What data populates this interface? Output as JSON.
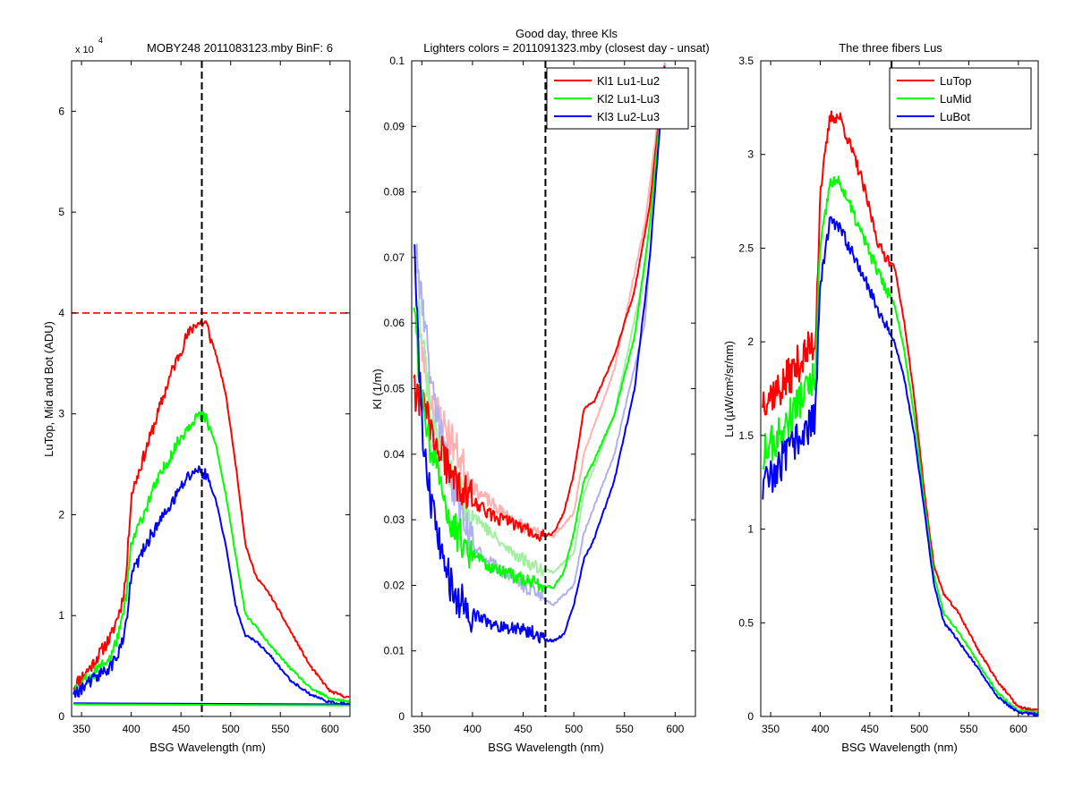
{
  "chart_data": [
    {
      "type": "line",
      "title": "MOBY248  2011083123.mby BinF: 6",
      "multiplier_label": "x 10",
      "multiplier_exponent": "4",
      "xlabel": "BSG Wavelength (nm)",
      "ylabel": "LuTop, Mid and Bot (ADU)",
      "xlim": [
        340,
        620
      ],
      "ylim": [
        0,
        65000
      ],
      "xticks": [
        350,
        400,
        450,
        500,
        550,
        600
      ],
      "yticks": [
        0,
        10000,
        20000,
        30000,
        40000,
        50000,
        60000
      ],
      "ytick_labels": [
        "0",
        "1",
        "2",
        "3",
        "4",
        "5",
        "6"
      ],
      "vline_x": 471,
      "hline_y": 40000,
      "noise_seed": 11,
      "series": [
        {
          "color": "#ff0000",
          "x": [
            342,
            360,
            380,
            390,
            395,
            400,
            420,
            440,
            455,
            465,
            475,
            485,
            495,
            505,
            515,
            525,
            540,
            560,
            580,
            600,
            620
          ],
          "y": [
            3000,
            5000,
            8000,
            11000,
            14000,
            22000,
            28000,
            34000,
            37500,
            39000,
            39000,
            36000,
            32000,
            25000,
            17000,
            14000,
            12000,
            8500,
            5000,
            2500,
            1800
          ]
        },
        {
          "color": "#00ff00",
          "x": [
            342,
            360,
            380,
            390,
            395,
            400,
            420,
            440,
            455,
            465,
            475,
            485,
            495,
            505,
            515,
            525,
            540,
            560,
            580,
            600,
            620
          ],
          "y": [
            2600,
            4000,
            6000,
            9000,
            12000,
            17000,
            22000,
            26000,
            28500,
            29800,
            29500,
            27000,
            22000,
            16000,
            10000,
            9000,
            7000,
            4800,
            2800,
            1800,
            1400
          ]
        },
        {
          "color": "#0000ff",
          "x": [
            342,
            360,
            380,
            390,
            395,
            400,
            420,
            440,
            455,
            465,
            475,
            485,
            495,
            505,
            515,
            525,
            540,
            560,
            580,
            600,
            620
          ],
          "y": [
            2200,
            3500,
            5000,
            7000,
            9000,
            14000,
            18000,
            21000,
            23500,
            24500,
            24000,
            21500,
            17000,
            11000,
            8000,
            7500,
            6000,
            3600,
            2200,
            1400,
            1200
          ]
        },
        {
          "color": "#0000ff",
          "x": [
            342,
            620
          ],
          "y": [
            1300,
            1200
          ],
          "noise": false
        },
        {
          "color": "#00ff00",
          "x": [
            342,
            620
          ],
          "y": [
            1200,
            1100
          ],
          "noise": false
        }
      ]
    },
    {
      "type": "line",
      "title": "Good day, three Kls",
      "subtitle": "Lighters colors = 2011091323.mby (closest day - unsat)",
      "xlabel": "BSG Wavelength (nm)",
      "ylabel": "Kl (1/m)",
      "xlim": [
        340,
        620
      ],
      "ylim": [
        0,
        0.1
      ],
      "xticks": [
        350,
        400,
        450,
        500,
        550,
        600
      ],
      "yticks": [
        0,
        0.01,
        0.02,
        0.03,
        0.04,
        0.05,
        0.06,
        0.07,
        0.08,
        0.09,
        0.1
      ],
      "ytick_labels": [
        "0",
        "0.01",
        "0.02",
        "0.03",
        "0.04",
        "0.05",
        "0.06",
        "0.07",
        "0.08",
        "0.09",
        "0.1"
      ],
      "vline_x": 472,
      "legend": {
        "position": "top-right",
        "entries": [
          {
            "label": "Kl1 Lu1-Lu2",
            "color": "#ff0000"
          },
          {
            "label": "Kl2 Lu1-Lu3",
            "color": "#00ff00"
          },
          {
            "label": "Kl3 Lu2-Lu3",
            "color": "#0000ff"
          }
        ]
      },
      "noise_seed": 23,
      "series": [
        {
          "color": "#ffb0b0",
          "x": [
            345,
            360,
            380,
            400,
            430,
            460,
            480,
            500,
            510,
            540,
            570,
            590
          ],
          "y": [
            0.06,
            0.048,
            0.042,
            0.035,
            0.031,
            0.028,
            0.0275,
            0.031,
            0.04,
            0.053,
            0.075,
            0.1
          ]
        },
        {
          "color": "#a0f0a0",
          "x": [
            345,
            360,
            380,
            400,
            430,
            460,
            480,
            500,
            510,
            540,
            570,
            590
          ],
          "y": [
            0.065,
            0.045,
            0.036,
            0.031,
            0.026,
            0.023,
            0.022,
            0.025,
            0.034,
            0.046,
            0.068,
            0.1
          ]
        },
        {
          "color": "#b0b0f0",
          "x": [
            345,
            360,
            380,
            400,
            430,
            460,
            480,
            500,
            510,
            540,
            570,
            590
          ],
          "y": [
            0.07,
            0.05,
            0.035,
            0.026,
            0.022,
            0.019,
            0.017,
            0.02,
            0.028,
            0.04,
            0.06,
            0.1
          ]
        },
        {
          "color": "#ff0000",
          "x": [
            342,
            350,
            360,
            370,
            380,
            400,
            420,
            440,
            460,
            470,
            480,
            490,
            500,
            510,
            520,
            540,
            560,
            575,
            590
          ],
          "y": [
            0.05,
            0.048,
            0.043,
            0.04,
            0.036,
            0.033,
            0.0305,
            0.0295,
            0.028,
            0.0275,
            0.028,
            0.031,
            0.037,
            0.047,
            0.048,
            0.055,
            0.065,
            0.078,
            0.1
          ]
        },
        {
          "color": "#00ff00",
          "x": [
            342,
            350,
            360,
            370,
            380,
            400,
            420,
            440,
            460,
            470,
            480,
            490,
            500,
            510,
            520,
            540,
            560,
            575,
            590
          ],
          "y": [
            0.062,
            0.048,
            0.04,
            0.034,
            0.029,
            0.025,
            0.0225,
            0.0215,
            0.0205,
            0.0198,
            0.0197,
            0.022,
            0.028,
            0.036,
            0.039,
            0.046,
            0.058,
            0.075,
            0.1
          ]
        },
        {
          "color": "#0000ff",
          "x": [
            342,
            350,
            360,
            370,
            380,
            400,
            420,
            440,
            460,
            470,
            480,
            490,
            500,
            510,
            520,
            540,
            560,
            575,
            590
          ],
          "y": [
            0.072,
            0.045,
            0.032,
            0.025,
            0.019,
            0.0155,
            0.014,
            0.0135,
            0.0128,
            0.0118,
            0.0115,
            0.0125,
            0.017,
            0.024,
            0.027,
            0.036,
            0.05,
            0.07,
            0.1
          ]
        }
      ]
    },
    {
      "type": "line",
      "title": "The three fibers Lus",
      "xlabel": "BSG Wavelength (nm)",
      "ylabel": "Lu (µW/cm²/sr/nm)",
      "xlim": [
        340,
        620
      ],
      "ylim": [
        0,
        3.5
      ],
      "xticks": [
        350,
        400,
        450,
        500,
        550,
        600
      ],
      "yticks": [
        0,
        0.5,
        1,
        1.5,
        2,
        2.5,
        3,
        3.5
      ],
      "ytick_labels": [
        "0",
        "0.5",
        "1",
        "1.5",
        "2",
        "2.5",
        "3",
        "3.5"
      ],
      "vline_x": 472,
      "legend": {
        "position": "top-right",
        "entries": [
          {
            "label": "LuTop",
            "color": "#ff0000"
          },
          {
            "label": "LuMid",
            "color": "#00ff00"
          },
          {
            "label": "LuBot",
            "color": "#0000ff"
          }
        ]
      },
      "noise_seed": 37,
      "series": [
        {
          "color": "#ff0000",
          "x": [
            342,
            360,
            380,
            395,
            400,
            410,
            420,
            440,
            460,
            475,
            485,
            495,
            505,
            515,
            525,
            540,
            560,
            580,
            600,
            620
          ],
          "y": [
            1.7,
            1.75,
            1.9,
            2.0,
            2.8,
            3.2,
            3.2,
            2.9,
            2.5,
            2.4,
            2.1,
            1.7,
            1.2,
            0.8,
            0.65,
            0.55,
            0.35,
            0.18,
            0.05,
            0.03
          ]
        },
        {
          "color": "#00ff00",
          "x": [
            342,
            360,
            380,
            395,
            400,
            410,
            420,
            440,
            460,
            475,
            485,
            495,
            505,
            515,
            525,
            540,
            560,
            580,
            600,
            620
          ],
          "y": [
            1.4,
            1.5,
            1.7,
            1.8,
            2.5,
            2.85,
            2.85,
            2.6,
            2.35,
            2.2,
            1.95,
            1.6,
            1.15,
            0.75,
            0.55,
            0.45,
            0.28,
            0.12,
            0.03,
            0.02
          ]
        },
        {
          "color": "#0000ff",
          "x": [
            342,
            360,
            380,
            395,
            400,
            410,
            420,
            440,
            460,
            475,
            485,
            495,
            505,
            515,
            525,
            540,
            560,
            580,
            600,
            620
          ],
          "y": [
            1.2,
            1.35,
            1.5,
            1.6,
            2.3,
            2.65,
            2.6,
            2.4,
            2.15,
            2.0,
            1.8,
            1.5,
            1.1,
            0.7,
            0.5,
            0.4,
            0.25,
            0.1,
            0.02,
            0.01
          ]
        }
      ]
    }
  ]
}
